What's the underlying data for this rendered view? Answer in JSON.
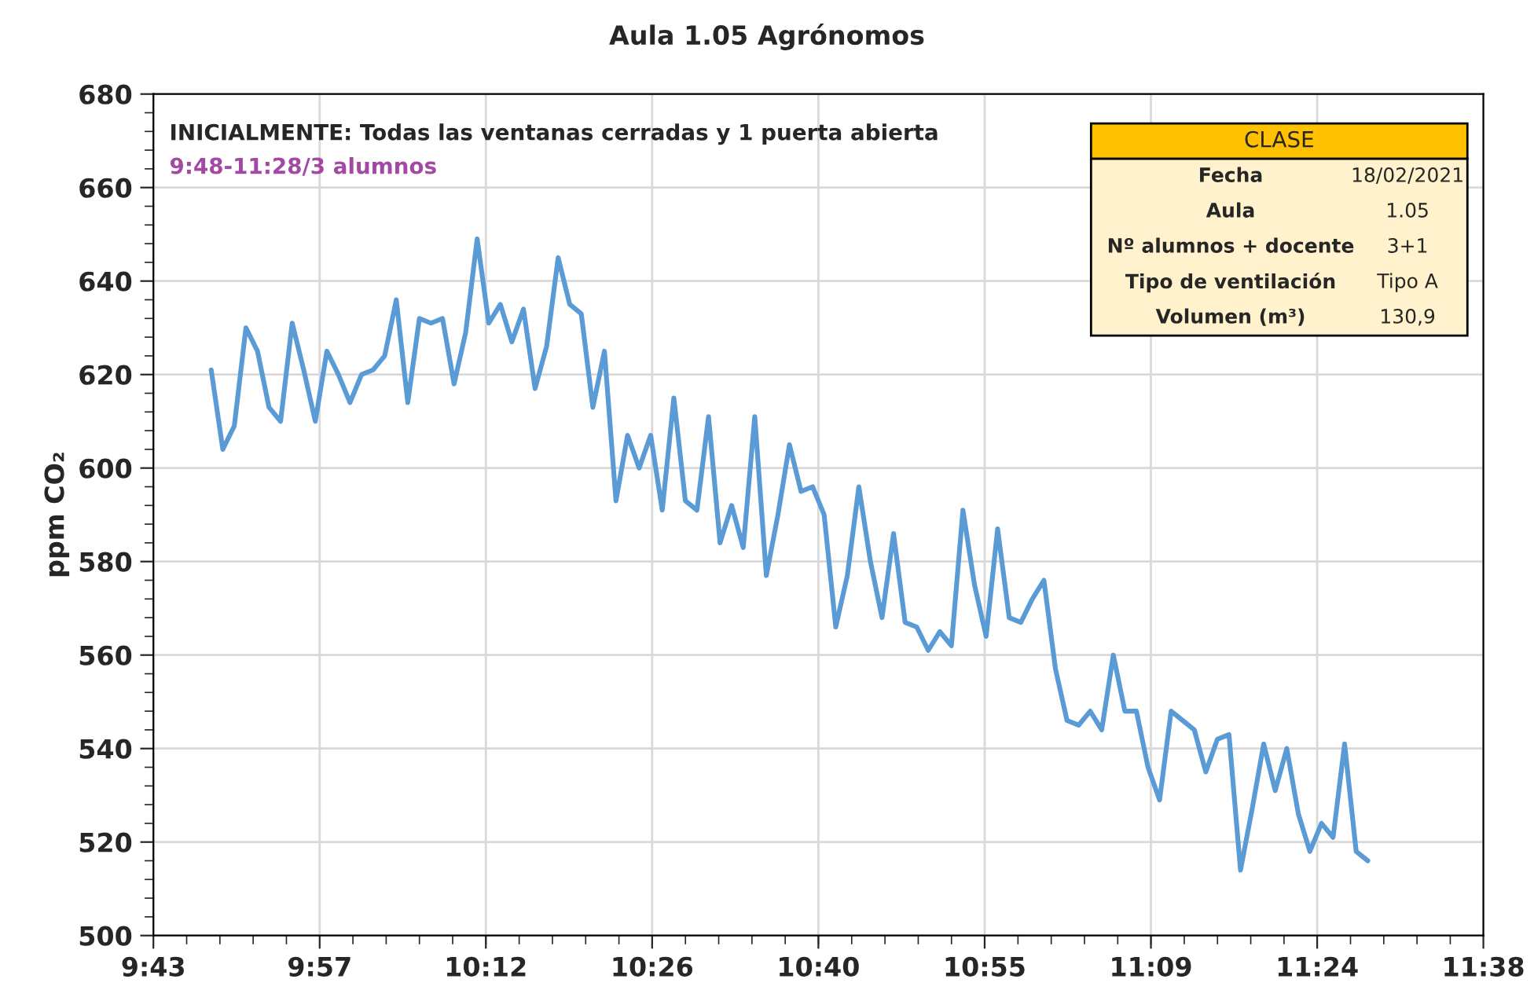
{
  "chart_data": {
    "type": "line",
    "title": "Aula 1.05 Agrónomos",
    "ylabel": "ppm CO₂",
    "annotations": [
      "INICIALMENTE: Todas las ventanas cerradas y 1 puerta abierta",
      "9:48-11:28/3 alumnos",
      "CLASE",
      "Fecha",
      "18/02/2021",
      "Aula",
      "1.05",
      "Nº alumnos + docente",
      "3+1",
      "Tipo de ventilación",
      "Tipo A",
      "Volumen (m³)",
      "130,9"
    ],
    "x": [
      9.8,
      9.8167,
      9.8333,
      9.85,
      9.8667,
      9.8833,
      9.9,
      9.9167,
      9.9333,
      9.95,
      9.9667,
      9.9833,
      10.0,
      10.0167,
      10.0333,
      10.05,
      10.0667,
      10.0833,
      10.1,
      10.1167,
      10.1333,
      10.15,
      10.1667,
      10.1833,
      10.2,
      10.2167,
      10.2333,
      10.25,
      10.2667,
      10.2833,
      10.3,
      10.3167,
      10.3333,
      10.35,
      10.3667,
      10.3833,
      10.4,
      10.4167,
      10.4333,
      10.45,
      10.4667,
      10.4833,
      10.5,
      10.5167,
      10.5333,
      10.55,
      10.5667,
      10.5833,
      10.6,
      10.6167,
      10.6333,
      10.65,
      10.6667,
      10.6833,
      10.7,
      10.7167,
      10.7333,
      10.75,
      10.7667,
      10.7833,
      10.8,
      10.8167,
      10.8333,
      10.85,
      10.8667,
      10.8833,
      10.9,
      10.9167,
      10.9333,
      10.95,
      10.9667,
      10.9833,
      11.0,
      11.0167,
      11.0333,
      11.05,
      11.0667,
      11.0833,
      11.1,
      11.1167,
      11.1333,
      11.15,
      11.1667,
      11.1833,
      11.2,
      11.2167,
      11.2333,
      11.25,
      11.2667,
      11.2833,
      11.3,
      11.3167,
      11.3333,
      11.35,
      11.3667,
      11.3833,
      11.4,
      11.4167,
      11.4333,
      11.45,
      11.4667
    ],
    "series": [
      {
        "color": "#5b9bd5",
        "values": [
          621,
          604,
          609,
          630,
          625,
          613,
          610,
          631,
          621,
          610,
          625,
          620,
          614,
          620,
          621,
          624,
          636,
          614,
          632,
          631,
          632,
          618,
          629,
          649,
          631,
          635,
          627,
          634,
          617,
          626,
          645,
          635,
          633,
          613,
          625,
          593,
          607,
          600,
          607,
          591,
          615,
          593,
          591,
          611,
          584,
          592,
          583,
          611,
          577,
          590,
          605,
          595,
          596,
          590,
          566,
          577,
          596,
          580,
          568,
          586,
          567,
          566,
          561,
          565,
          562,
          591,
          575,
          564,
          587,
          568,
          567,
          572,
          576,
          557,
          546,
          545,
          548,
          544,
          560,
          548,
          548,
          536,
          529,
          548,
          546,
          544,
          535,
          542,
          543,
          514,
          527,
          541,
          531,
          540,
          526,
          518,
          524,
          521,
          541,
          518,
          516
        ]
      }
    ],
    "xlim": [
      9.7167,
      11.6333
    ],
    "xticks": [
      {
        "value": 9.7167,
        "label": "9:43"
      },
      {
        "value": 9.9563,
        "label": "9:57"
      },
      {
        "value": 10.1958,
        "label": "10:12"
      },
      {
        "value": 10.4354,
        "label": "10:26"
      },
      {
        "value": 10.675,
        "label": "10:40"
      },
      {
        "value": 10.9146,
        "label": "10:55"
      },
      {
        "value": 11.1542,
        "label": "11:09"
      },
      {
        "value": 11.3938,
        "label": "11:24"
      },
      {
        "value": 11.6333,
        "label": "11:38"
      }
    ],
    "ylim": [
      500,
      680
    ],
    "yticks": [
      500,
      520,
      540,
      560,
      580,
      600,
      620,
      640,
      660,
      680
    ],
    "grid": true,
    "marker": "none",
    "line_style": "solid"
  }
}
